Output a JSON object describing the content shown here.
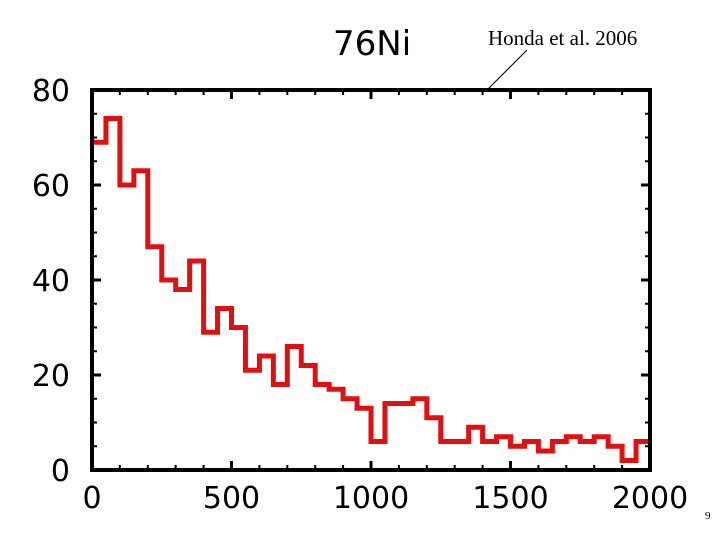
{
  "slide": {
    "page_number": "9"
  },
  "chart_data": {
    "type": "line",
    "style": "histogram-step",
    "title": "76Ni",
    "annotation": "Honda et al. 2006",
    "xlabel": "",
    "ylabel": "",
    "xlim": [
      0,
      2000
    ],
    "ylim": [
      0,
      80
    ],
    "xticks": [
      "0",
      "500",
      "1000",
      "1500",
      "2000"
    ],
    "yticks": [
      "0",
      "20",
      "40",
      "60",
      "80"
    ],
    "bin_width": 50,
    "x": [
      0,
      50,
      100,
      150,
      200,
      250,
      300,
      350,
      400,
      450,
      500,
      550,
      600,
      650,
      700,
      750,
      800,
      850,
      900,
      950,
      1000,
      1050,
      1100,
      1150,
      1200,
      1250,
      1300,
      1350,
      1400,
      1450,
      1500,
      1550,
      1600,
      1650,
      1700,
      1750,
      1800,
      1850,
      1900,
      1950
    ],
    "values": [
      69,
      74,
      60,
      63,
      47,
      40,
      38,
      44,
      29,
      34,
      30,
      21,
      24,
      18,
      26,
      22,
      18,
      17,
      15,
      13,
      6,
      14,
      14,
      15,
      11,
      6,
      6,
      9,
      6,
      7,
      5,
      6,
      4,
      6,
      7,
      6,
      7,
      5,
      2,
      6
    ],
    "line_color": "#e01010",
    "grid": false
  }
}
